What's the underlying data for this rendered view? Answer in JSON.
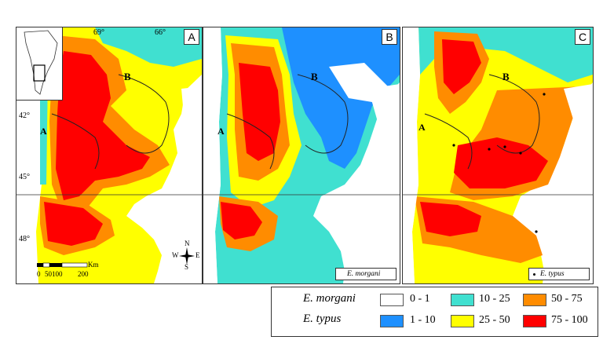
{
  "panels": [
    {
      "letter": "A",
      "species": "",
      "top_ticks": [
        "69°",
        "66°"
      ],
      "lat_ticks": [
        "42°",
        "45°",
        "48°"
      ],
      "region_a": "A",
      "region_b": "B"
    },
    {
      "letter": "B",
      "species": "E. morgani",
      "region_a": "A",
      "region_b": "B"
    },
    {
      "letter": "C",
      "species": "E. typus",
      "region_a": "A",
      "region_b": "B"
    }
  ],
  "scale_bar": {
    "unit": "Km",
    "labels": [
      "0",
      "50100",
      "200"
    ]
  },
  "compass": {
    "n": "N",
    "s": "S",
    "e": "E",
    "w": "W"
  },
  "legend": {
    "species": [
      "E. morgani",
      "E. typus"
    ],
    "classes": [
      {
        "label": "0 - 1",
        "color": "#ffffff"
      },
      {
        "label": "1 - 10",
        "color": "#1e90ff"
      },
      {
        "label": "10 - 25",
        "color": "#40e0d0"
      },
      {
        "label": "25 - 50",
        "color": "#ffff00"
      },
      {
        "label": "50 - 75",
        "color": "#ff8c00"
      },
      {
        "label": "75 - 100",
        "color": "#ff0000"
      }
    ]
  }
}
